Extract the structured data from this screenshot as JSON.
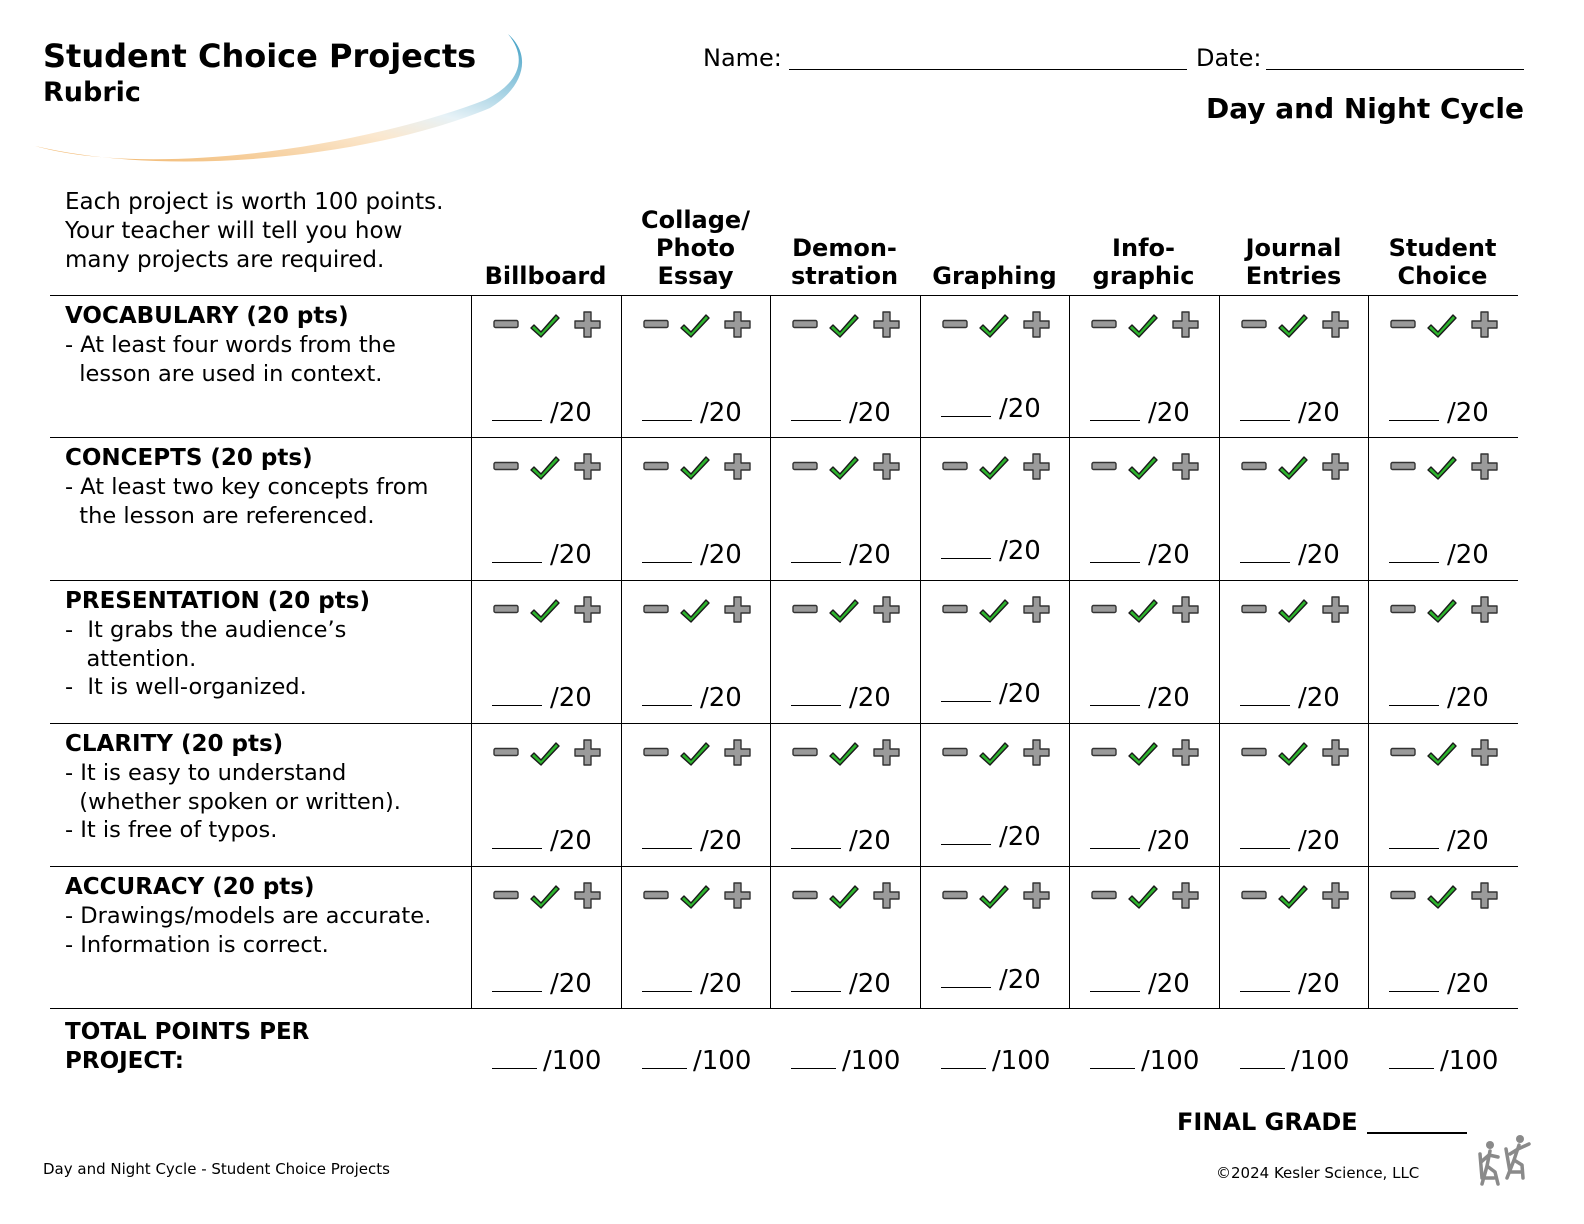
{
  "header": {
    "title": "Student Choice Projects",
    "subtitle": "Rubric",
    "name_label": "Name:",
    "date_label": "Date:",
    "topic": "Day and Night Cycle"
  },
  "intro": "Each project is worth 100 points. Your teacher will tell you how many projects are required.",
  "columns": [
    "Billboard",
    "Collage/\nPhoto\nEssay",
    "Demon-\nstration",
    "Graphing",
    "Info-\ngraphic",
    "Journal\nEntries",
    "Student\nChoice"
  ],
  "criteria": [
    {
      "title": "VOCABULARY (20 pts)",
      "lines": [
        "- At least four words from the",
        "  lesson are used in context."
      ]
    },
    {
      "title": "CONCEPTS (20 pts)",
      "lines": [
        "- At least two key concepts from",
        "  the lesson are referenced."
      ]
    },
    {
      "title": "PRESENTATION (20 pts)",
      "lines": [
        "-  It grabs the audience’s",
        "   attention.",
        "-  It is well-organized."
      ]
    },
    {
      "title": "CLARITY (20 pts)",
      "lines": [
        "- It is easy to understand",
        "  (whether spoken or written).",
        "- It is free of typos."
      ]
    },
    {
      "title": "ACCURACY (20 pts)",
      "lines": [
        "- Drawings/models are accurate.",
        "- Information is correct."
      ]
    }
  ],
  "score_label": "/20",
  "total_label": "TOTAL POINTS PER PROJECT:",
  "total_score_label": "/100",
  "final_grade_label": "FINAL GRADE",
  "footer": {
    "left": "Day and Night Cycle - Student Choice Projects",
    "right": "©2024  Kesler Science, LLC"
  },
  "icons": {
    "minus": "minus-icon",
    "check": "checkmark-icon",
    "plus": "plus-icon",
    "check_color": "#2db52d",
    "gray": "#9a9a9a"
  },
  "colors": {
    "swoosh_blue": "#3d9ec4",
    "swoosh_orange": "#f0b060"
  }
}
